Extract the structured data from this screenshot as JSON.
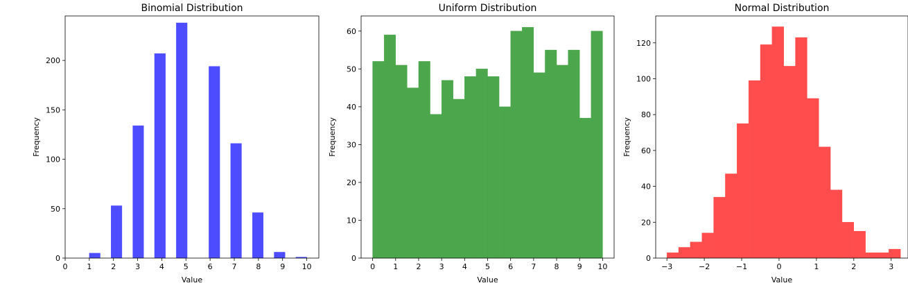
{
  "chart_data": [
    {
      "type": "bar",
      "title": "Binomial Distribution",
      "xlabel": "Value",
      "ylabel": "Frequency",
      "xlim": [
        0,
        10.5
      ],
      "ylim": [
        0,
        245
      ],
      "xticks": [
        0,
        1,
        2,
        3,
        4,
        5,
        6,
        7,
        8,
        9,
        10
      ],
      "yticks": [
        0,
        50,
        100,
        150,
        200
      ],
      "color": "#4d4dff",
      "bins": [
        {
          "x0": 1.0,
          "x1": 1.45,
          "value": 5
        },
        {
          "x0": 1.9,
          "x1": 2.35,
          "value": 53
        },
        {
          "x0": 2.8,
          "x1": 3.25,
          "value": 134
        },
        {
          "x0": 3.7,
          "x1": 4.15,
          "value": 207
        },
        {
          "x0": 4.6,
          "x1": 5.05,
          "value": 238
        },
        {
          "x0": 5.95,
          "x1": 6.4,
          "value": 194
        },
        {
          "x0": 6.85,
          "x1": 7.3,
          "value": 116
        },
        {
          "x0": 7.75,
          "x1": 8.2,
          "value": 46
        },
        {
          "x0": 8.65,
          "x1": 9.1,
          "value": 6
        },
        {
          "x0": 9.55,
          "x1": 10.0,
          "value": 1
        }
      ]
    },
    {
      "type": "bar",
      "title": "Uniform Distribution",
      "xlabel": "Value",
      "ylabel": "Frequency",
      "xlim": [
        -0.5,
        10.5
      ],
      "ylim": [
        0,
        64
      ],
      "xticks": [
        0,
        1,
        2,
        3,
        4,
        5,
        6,
        7,
        8,
        9,
        10
      ],
      "yticks": [
        0,
        10,
        20,
        30,
        40,
        50,
        60
      ],
      "color": "#4ca64c",
      "bin_range": [
        0,
        10
      ],
      "values": [
        52,
        59,
        51,
        45,
        52,
        38,
        47,
        42,
        48,
        50,
        48,
        40,
        60,
        61,
        49,
        55,
        51,
        55,
        37,
        60
      ]
    },
    {
      "type": "bar",
      "title": "Normal Distribution",
      "xlabel": "Value",
      "ylabel": "Frequency",
      "xlim": [
        -3.3,
        3.45
      ],
      "ylim": [
        0,
        135
      ],
      "xticks": [
        -3,
        -2,
        -1,
        0,
        1,
        2,
        3
      ],
      "yticks": [
        0,
        20,
        40,
        60,
        80,
        100,
        120
      ],
      "color": "#ff4d4d",
      "bin_range": [
        -3.0,
        3.25
      ],
      "values": [
        3,
        6,
        9,
        14,
        34,
        47,
        75,
        99,
        119,
        129,
        107,
        123,
        89,
        62,
        38,
        20,
        15,
        3,
        3,
        5
      ]
    }
  ]
}
